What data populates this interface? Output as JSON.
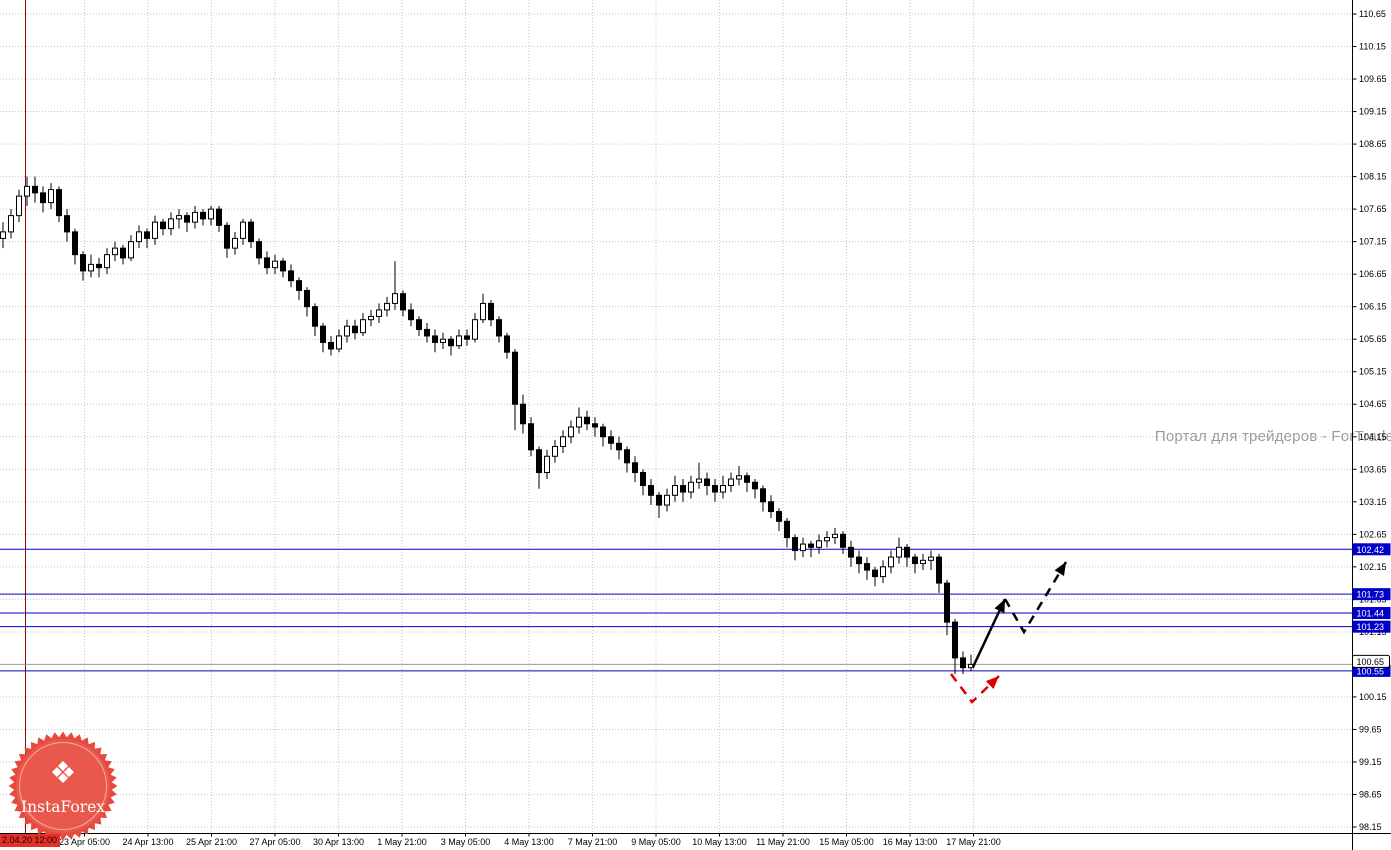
{
  "watermark": {
    "text": "Портал для трейдеров - ForTraders"
  },
  "logo": {
    "text": "InstaForex",
    "glyph": "❖"
  },
  "time_marker": {
    "label": "2.04.20 12:00"
  },
  "colors": {
    "level_blue": "#0000c8",
    "grid_grey": "#c6c6c6",
    "time_line_red": "#990000",
    "marker_label_bg": "#e33027",
    "watermark_grey": "#9a9a9a",
    "annotation_black": "#000000",
    "annotation_red": "#dd0000",
    "logo_red": "#e6493e"
  },
  "chart_data": {
    "type": "candlestick",
    "title": "",
    "xlabel": "",
    "ylabel": "",
    "ylim": [
      98.15,
      110.65
    ],
    "grid": true,
    "y_ticks": [
      110.65,
      110.15,
      109.65,
      109.15,
      108.65,
      108.15,
      107.65,
      107.15,
      106.65,
      106.15,
      105.65,
      105.15,
      104.65,
      104.15,
      103.65,
      103.15,
      102.65,
      102.15,
      101.65,
      101.15,
      100.65,
      100.15,
      99.65,
      99.15,
      98.65,
      98.15
    ],
    "x_ticks": [
      "23 Apr 05:00",
      "24 Apr 13:00",
      "25 Apr 21:00",
      "27 Apr 05:00",
      "30 Apr 13:00",
      "1 May 21:00",
      "3 May 05:00",
      "4 May 13:00",
      "7 May 21:00",
      "9 May 05:00",
      "10 May 13:00",
      "11 May 21:00",
      "15 May 05:00",
      "16 May 13:00",
      "17 May 21:00"
    ],
    "levels": [
      102.42,
      101.73,
      101.44,
      101.23,
      100.55
    ],
    "current_price": 100.65,
    "candles": [
      [
        107.2,
        107.45,
        107.05,
        107.3
      ],
      [
        107.3,
        107.65,
        107.2,
        107.55
      ],
      [
        107.55,
        107.95,
        107.45,
        107.85
      ],
      [
        107.85,
        108.15,
        107.7,
        108.0
      ],
      [
        108.0,
        108.15,
        107.75,
        107.9
      ],
      [
        107.9,
        108.0,
        107.6,
        107.75
      ],
      [
        107.75,
        108.05,
        107.65,
        107.95
      ],
      [
        107.95,
        108.0,
        107.45,
        107.55
      ],
      [
        107.55,
        107.65,
        107.15,
        107.3
      ],
      [
        107.3,
        107.35,
        106.8,
        106.95
      ],
      [
        106.95,
        107.0,
        106.55,
        106.7
      ],
      [
        106.7,
        106.95,
        106.6,
        106.8
      ],
      [
        106.8,
        106.9,
        106.6,
        106.75
      ],
      [
        106.75,
        107.05,
        106.65,
        106.95
      ],
      [
        106.95,
        107.15,
        106.85,
        107.05
      ],
      [
        107.05,
        107.1,
        106.8,
        106.9
      ],
      [
        106.9,
        107.25,
        106.85,
        107.15
      ],
      [
        107.15,
        107.4,
        107.05,
        107.3
      ],
      [
        107.3,
        107.35,
        107.05,
        107.2
      ],
      [
        107.2,
        107.55,
        107.1,
        107.45
      ],
      [
        107.45,
        107.5,
        107.25,
        107.35
      ],
      [
        107.35,
        107.6,
        107.25,
        107.5
      ],
      [
        107.5,
        107.65,
        107.35,
        107.55
      ],
      [
        107.55,
        107.6,
        107.3,
        107.45
      ],
      [
        107.45,
        107.7,
        107.35,
        107.6
      ],
      [
        107.6,
        107.65,
        107.4,
        107.5
      ],
      [
        107.5,
        107.7,
        107.4,
        107.65
      ],
      [
        107.65,
        107.7,
        107.3,
        107.4
      ],
      [
        107.4,
        107.45,
        106.9,
        107.05
      ],
      [
        107.05,
        107.3,
        106.95,
        107.2
      ],
      [
        107.2,
        107.5,
        107.1,
        107.45
      ],
      [
        107.45,
        107.5,
        107.05,
        107.15
      ],
      [
        107.15,
        107.2,
        106.8,
        106.9
      ],
      [
        106.9,
        107.0,
        106.65,
        106.75
      ],
      [
        106.75,
        106.95,
        106.65,
        106.85
      ],
      [
        106.85,
        106.9,
        106.6,
        106.7
      ],
      [
        106.7,
        106.8,
        106.45,
        106.55
      ],
      [
        106.55,
        106.6,
        106.25,
        106.4
      ],
      [
        106.4,
        106.45,
        106.0,
        106.15
      ],
      [
        106.15,
        106.2,
        105.7,
        105.85
      ],
      [
        105.85,
        105.9,
        105.45,
        105.6
      ],
      [
        105.6,
        105.7,
        105.4,
        105.5
      ],
      [
        105.5,
        105.8,
        105.45,
        105.7
      ],
      [
        105.7,
        105.95,
        105.6,
        105.85
      ],
      [
        105.85,
        105.95,
        105.65,
        105.75
      ],
      [
        105.75,
        106.05,
        105.7,
        105.95
      ],
      [
        105.95,
        106.1,
        105.85,
        106.0
      ],
      [
        106.0,
        106.2,
        105.9,
        106.1
      ],
      [
        106.1,
        106.3,
        106.0,
        106.2
      ],
      [
        106.2,
        106.85,
        106.1,
        106.35
      ],
      [
        106.35,
        106.4,
        106.0,
        106.1
      ],
      [
        106.1,
        106.2,
        105.85,
        105.95
      ],
      [
        105.95,
        106.0,
        105.7,
        105.8
      ],
      [
        105.8,
        105.9,
        105.6,
        105.7
      ],
      [
        105.7,
        105.8,
        105.45,
        105.6
      ],
      [
        105.6,
        105.75,
        105.5,
        105.65
      ],
      [
        105.65,
        105.7,
        105.4,
        105.55
      ],
      [
        105.55,
        105.8,
        105.5,
        105.7
      ],
      [
        105.7,
        105.8,
        105.55,
        105.65
      ],
      [
        105.65,
        106.05,
        105.6,
        105.95
      ],
      [
        105.95,
        106.35,
        105.9,
        106.2
      ],
      [
        106.2,
        106.25,
        105.85,
        105.95
      ],
      [
        105.95,
        106.0,
        105.6,
        105.7
      ],
      [
        105.7,
        105.75,
        105.35,
        105.45
      ],
      [
        105.45,
        105.5,
        104.25,
        104.65
      ],
      [
        104.65,
        104.8,
        104.2,
        104.35
      ],
      [
        104.35,
        104.45,
        103.85,
        103.95
      ],
      [
        103.95,
        104.0,
        103.35,
        103.6
      ],
      [
        103.6,
        103.95,
        103.5,
        103.85
      ],
      [
        103.85,
        104.1,
        103.75,
        104.0
      ],
      [
        104.0,
        104.25,
        103.9,
        104.15
      ],
      [
        104.15,
        104.4,
        104.05,
        104.3
      ],
      [
        104.3,
        104.6,
        104.2,
        104.45
      ],
      [
        104.45,
        104.55,
        104.25,
        104.35
      ],
      [
        104.35,
        104.45,
        104.15,
        104.3
      ],
      [
        104.3,
        104.35,
        104.0,
        104.15
      ],
      [
        104.15,
        104.25,
        103.95,
        104.05
      ],
      [
        104.05,
        104.15,
        103.8,
        103.95
      ],
      [
        103.95,
        104.0,
        103.6,
        103.75
      ],
      [
        103.75,
        103.85,
        103.45,
        103.6
      ],
      [
        103.6,
        103.65,
        103.25,
        103.4
      ],
      [
        103.4,
        103.5,
        103.1,
        103.25
      ],
      [
        103.25,
        103.3,
        102.9,
        103.1
      ],
      [
        103.1,
        103.35,
        103.0,
        103.25
      ],
      [
        103.25,
        103.55,
        103.15,
        103.4
      ],
      [
        103.4,
        103.5,
        103.15,
        103.3
      ],
      [
        103.3,
        103.55,
        103.2,
        103.45
      ],
      [
        103.45,
        103.75,
        103.35,
        103.5
      ],
      [
        103.5,
        103.6,
        103.25,
        103.4
      ],
      [
        103.4,
        103.5,
        103.15,
        103.3
      ],
      [
        103.3,
        103.55,
        103.2,
        103.4
      ],
      [
        103.4,
        103.6,
        103.3,
        103.5
      ],
      [
        103.5,
        103.7,
        103.4,
        103.55
      ],
      [
        103.55,
        103.6,
        103.3,
        103.45
      ],
      [
        103.45,
        103.5,
        103.2,
        103.35
      ],
      [
        103.35,
        103.4,
        103.0,
        103.15
      ],
      [
        103.15,
        103.25,
        102.9,
        103.0
      ],
      [
        103.0,
        103.05,
        102.7,
        102.85
      ],
      [
        102.85,
        102.9,
        102.45,
        102.6
      ],
      [
        102.6,
        102.65,
        102.25,
        102.4
      ],
      [
        102.4,
        102.6,
        102.3,
        102.5
      ],
      [
        102.5,
        102.55,
        102.3,
        102.45
      ],
      [
        102.45,
        102.65,
        102.35,
        102.55
      ],
      [
        102.55,
        102.7,
        102.45,
        102.6
      ],
      [
        102.6,
        102.75,
        102.5,
        102.65
      ],
      [
        102.65,
        102.7,
        102.35,
        102.45
      ],
      [
        102.45,
        102.55,
        102.15,
        102.3
      ],
      [
        102.3,
        102.4,
        102.05,
        102.2
      ],
      [
        102.2,
        102.3,
        101.95,
        102.1
      ],
      [
        102.1,
        102.15,
        101.85,
        102.0
      ],
      [
        102.0,
        102.25,
        101.9,
        102.15
      ],
      [
        102.15,
        102.4,
        102.05,
        102.3
      ],
      [
        102.3,
        102.6,
        102.2,
        102.45
      ],
      [
        102.45,
        102.5,
        102.15,
        102.3
      ],
      [
        102.3,
        102.35,
        102.05,
        102.2
      ],
      [
        102.2,
        102.35,
        102.1,
        102.25
      ],
      [
        102.25,
        102.4,
        102.1,
        102.3
      ],
      [
        102.3,
        102.35,
        101.75,
        101.9
      ],
      [
        101.9,
        101.95,
        101.1,
        101.3
      ],
      [
        101.3,
        101.35,
        100.5,
        100.75
      ],
      [
        100.75,
        100.85,
        100.5,
        100.6
      ],
      [
        100.6,
        100.8,
        100.55,
        100.65
      ]
    ],
    "annotations": [
      {
        "shape": "arrow",
        "stroke": "solid",
        "color": "#000000",
        "points": [
          [
            973,
            667
          ],
          [
            1005,
            599
          ]
        ]
      },
      {
        "shape": "arrow",
        "stroke": "dashed",
        "color": "#000000",
        "points": [
          [
            1005,
            599
          ],
          [
            1024,
            632
          ],
          [
            1066,
            562
          ]
        ]
      },
      {
        "shape": "arrow",
        "stroke": "dashed",
        "color": "#dd0000",
        "points": [
          [
            951,
            674
          ],
          [
            972,
            702
          ],
          [
            999,
            676
          ]
        ]
      }
    ]
  }
}
